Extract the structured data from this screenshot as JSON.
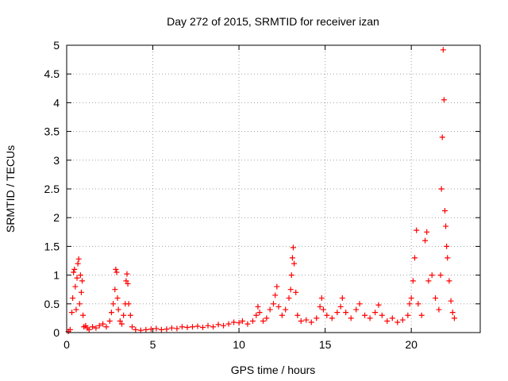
{
  "chart_data": {
    "type": "scatter",
    "title": "Day 272 of 2015, SRMTID for receiver izan",
    "xlabel": "GPS time / hours",
    "ylabel": "SRMTID / TECUs",
    "xlim": [
      0,
      24
    ],
    "ylim": [
      0,
      5
    ],
    "xticks": [
      0,
      5,
      10,
      15,
      20
    ],
    "xtick_labels": [
      "0",
      "5",
      "10",
      "15",
      "20"
    ],
    "yticks": [
      0,
      0.5,
      1,
      1.5,
      2,
      2.5,
      3,
      3.5,
      4,
      4.5,
      5
    ],
    "ytick_labels": [
      "0",
      "0.5",
      "1",
      "1.5",
      "2",
      "2.5",
      "3",
      "3.5",
      "4",
      "4.5",
      "5"
    ],
    "grid": true,
    "marker": "+",
    "marker_color": "#ff0000",
    "series": [
      {
        "name": "SRMTID",
        "points": [
          [
            0.1,
            0.02
          ],
          [
            0.2,
            0.05
          ],
          [
            0.3,
            0.35
          ],
          [
            0.35,
            0.6
          ],
          [
            0.4,
            1.05
          ],
          [
            0.45,
            1.1
          ],
          [
            0.5,
            0.8
          ],
          [
            0.55,
            0.4
          ],
          [
            0.6,
            0.95
          ],
          [
            0.65,
            1.2
          ],
          [
            0.7,
            1.28
          ],
          [
            0.75,
            0.5
          ],
          [
            0.8,
            1.0
          ],
          [
            0.85,
            0.7
          ],
          [
            0.9,
            0.9
          ],
          [
            0.95,
            0.3
          ],
          [
            1.0,
            0.1
          ],
          [
            1.1,
            0.12
          ],
          [
            1.2,
            0.08
          ],
          [
            1.3,
            0.05
          ],
          [
            1.5,
            0.1
          ],
          [
            1.7,
            0.08
          ],
          [
            1.9,
            0.12
          ],
          [
            2.1,
            0.15
          ],
          [
            2.3,
            0.1
          ],
          [
            2.5,
            0.2
          ],
          [
            2.6,
            0.35
          ],
          [
            2.7,
            0.5
          ],
          [
            2.8,
            0.75
          ],
          [
            2.85,
            1.1
          ],
          [
            2.9,
            1.05
          ],
          [
            2.95,
            0.6
          ],
          [
            3.0,
            0.4
          ],
          [
            3.1,
            0.2
          ],
          [
            3.2,
            0.15
          ],
          [
            3.3,
            0.3
          ],
          [
            3.4,
            0.5
          ],
          [
            3.45,
            0.9
          ],
          [
            3.5,
            1.02
          ],
          [
            3.55,
            0.85
          ],
          [
            3.6,
            0.5
          ],
          [
            3.7,
            0.3
          ],
          [
            3.8,
            0.1
          ],
          [
            4.0,
            0.05
          ],
          [
            4.3,
            0.04
          ],
          [
            4.6,
            0.05
          ],
          [
            4.9,
            0.06
          ],
          [
            5.2,
            0.07
          ],
          [
            5.5,
            0.05
          ],
          [
            5.8,
            0.06
          ],
          [
            6.1,
            0.08
          ],
          [
            6.4,
            0.07
          ],
          [
            6.7,
            0.1
          ],
          [
            7.0,
            0.09
          ],
          [
            7.3,
            0.1
          ],
          [
            7.6,
            0.11
          ],
          [
            7.9,
            0.09
          ],
          [
            8.2,
            0.12
          ],
          [
            8.5,
            0.1
          ],
          [
            8.8,
            0.14
          ],
          [
            9.1,
            0.12
          ],
          [
            9.4,
            0.15
          ],
          [
            9.7,
            0.18
          ],
          [
            10.0,
            0.17
          ],
          [
            10.2,
            0.2
          ],
          [
            10.5,
            0.15
          ],
          [
            10.8,
            0.2
          ],
          [
            11.0,
            0.3
          ],
          [
            11.1,
            0.45
          ],
          [
            11.2,
            0.35
          ],
          [
            11.4,
            0.2
          ],
          [
            11.6,
            0.25
          ],
          [
            11.8,
            0.4
          ],
          [
            12.0,
            0.5
          ],
          [
            12.1,
            0.65
          ],
          [
            12.2,
            0.8
          ],
          [
            12.3,
            0.45
          ],
          [
            12.5,
            0.3
          ],
          [
            12.7,
            0.4
          ],
          [
            12.9,
            0.6
          ],
          [
            13.0,
            0.75
          ],
          [
            13.05,
            1.0
          ],
          [
            13.1,
            1.3
          ],
          [
            13.15,
            1.48
          ],
          [
            13.2,
            1.2
          ],
          [
            13.3,
            0.7
          ],
          [
            13.4,
            0.3
          ],
          [
            13.6,
            0.2
          ],
          [
            13.9,
            0.22
          ],
          [
            14.2,
            0.18
          ],
          [
            14.5,
            0.25
          ],
          [
            14.7,
            0.45
          ],
          [
            14.8,
            0.6
          ],
          [
            14.9,
            0.4
          ],
          [
            15.1,
            0.3
          ],
          [
            15.4,
            0.25
          ],
          [
            15.7,
            0.35
          ],
          [
            15.9,
            0.45
          ],
          [
            16.0,
            0.6
          ],
          [
            16.2,
            0.35
          ],
          [
            16.5,
            0.25
          ],
          [
            16.8,
            0.4
          ],
          [
            17.0,
            0.5
          ],
          [
            17.3,
            0.3
          ],
          [
            17.6,
            0.25
          ],
          [
            17.9,
            0.35
          ],
          [
            18.1,
            0.48
          ],
          [
            18.3,
            0.3
          ],
          [
            18.6,
            0.2
          ],
          [
            18.9,
            0.25
          ],
          [
            19.2,
            0.18
          ],
          [
            19.5,
            0.22
          ],
          [
            19.8,
            0.3
          ],
          [
            19.9,
            0.5
          ],
          [
            20.0,
            0.6
          ],
          [
            20.1,
            0.9
          ],
          [
            20.2,
            1.3
          ],
          [
            20.3,
            1.78
          ],
          [
            20.4,
            0.5
          ],
          [
            20.6,
            0.3
          ],
          [
            20.8,
            1.6
          ],
          [
            20.9,
            1.75
          ],
          [
            21.0,
            0.9
          ],
          [
            21.2,
            1.0
          ],
          [
            21.4,
            0.6
          ],
          [
            21.6,
            0.4
          ],
          [
            21.7,
            1.0
          ],
          [
            21.75,
            2.5
          ],
          [
            21.8,
            3.4
          ],
          [
            21.85,
            4.92
          ],
          [
            21.9,
            4.05
          ],
          [
            21.95,
            2.12
          ],
          [
            22.0,
            1.85
          ],
          [
            22.05,
            1.5
          ],
          [
            22.1,
            1.3
          ],
          [
            22.2,
            0.9
          ],
          [
            22.3,
            0.55
          ],
          [
            22.4,
            0.35
          ],
          [
            22.5,
            0.25
          ]
        ]
      }
    ]
  }
}
